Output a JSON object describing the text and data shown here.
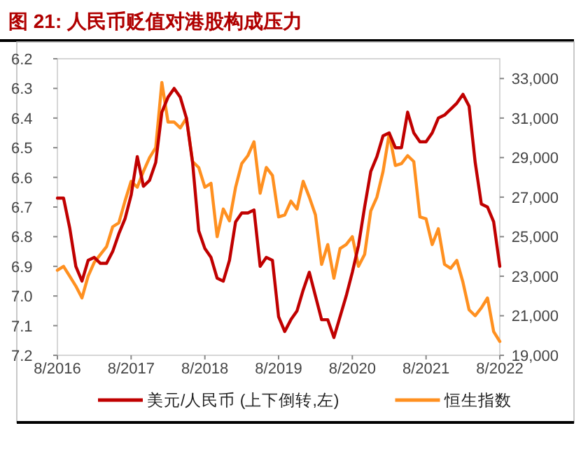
{
  "chart_data": {
    "type": "line",
    "title": "图 21: 人民币贬值对港股构成压力",
    "x": [
      "2016-08",
      "2016-09",
      "2016-10",
      "2016-11",
      "2016-12",
      "2017-01",
      "2017-02",
      "2017-03",
      "2017-04",
      "2017-05",
      "2017-06",
      "2017-07",
      "2017-08",
      "2017-09",
      "2017-10",
      "2017-11",
      "2017-12",
      "2018-01",
      "2018-02",
      "2018-03",
      "2018-04",
      "2018-05",
      "2018-06",
      "2018-07",
      "2018-08",
      "2018-09",
      "2018-10",
      "2018-11",
      "2018-12",
      "2019-01",
      "2019-02",
      "2019-03",
      "2019-04",
      "2019-05",
      "2019-06",
      "2019-07",
      "2019-08",
      "2019-09",
      "2019-10",
      "2019-11",
      "2019-12",
      "2020-01",
      "2020-02",
      "2020-03",
      "2020-04",
      "2020-05",
      "2020-06",
      "2020-07",
      "2020-08",
      "2020-09",
      "2020-10",
      "2020-11",
      "2020-12",
      "2021-01",
      "2021-02",
      "2021-03",
      "2021-04",
      "2021-05",
      "2021-06",
      "2021-07",
      "2021-08",
      "2021-09",
      "2021-10",
      "2021-11",
      "2021-12",
      "2022-01",
      "2022-02",
      "2022-03",
      "2022-04",
      "2022-05",
      "2022-06",
      "2022-07",
      "2022-08"
    ],
    "series": [
      {
        "name": "美元/人民币 (上下倒转,左)",
        "color": "#c00000",
        "values": [
          6.67,
          6.67,
          6.77,
          6.9,
          6.95,
          6.88,
          6.87,
          6.89,
          6.89,
          6.85,
          6.79,
          6.74,
          6.66,
          6.53,
          6.63,
          6.61,
          6.55,
          6.38,
          6.33,
          6.3,
          6.33,
          6.4,
          6.55,
          6.78,
          6.84,
          6.87,
          6.94,
          6.95,
          6.88,
          6.75,
          6.72,
          6.72,
          6.71,
          6.9,
          6.87,
          6.88,
          7.07,
          7.12,
          7.08,
          7.05,
          6.98,
          6.92,
          7.0,
          7.08,
          7.08,
          7.14,
          7.07,
          7.0,
          6.92,
          6.83,
          6.7,
          6.58,
          6.53,
          6.46,
          6.45,
          6.5,
          6.5,
          6.38,
          6.45,
          6.48,
          6.48,
          6.45,
          6.4,
          6.39,
          6.37,
          6.35,
          6.32,
          6.36,
          6.55,
          6.69,
          6.7,
          6.75,
          6.9
        ]
      },
      {
        "name": "恒生指数",
        "color": "#ff9020",
        "axis": "y2",
        "values": [
          23300,
          23500,
          23000,
          22500,
          21900,
          23000,
          23700,
          24100,
          24500,
          25500,
          25700,
          26800,
          27800,
          27500,
          28300,
          29000,
          29500,
          32800,
          30800,
          30800,
          30500,
          31000,
          28800,
          28500,
          27500,
          27700,
          25000,
          26400,
          25800,
          27500,
          28700,
          29100,
          29800,
          27200,
          28500,
          28100,
          26000,
          26100,
          26800,
          26400,
          27800,
          27000,
          26100,
          23600,
          24600,
          22900,
          24400,
          24600,
          25000,
          23500,
          24100,
          26300,
          27000,
          28300,
          30200,
          28600,
          28700,
          29100,
          28800,
          26000,
          25900,
          24600,
          25400,
          23600,
          23400,
          23800,
          22700,
          21300,
          21000,
          21400,
          21900,
          20200,
          19700
        ]
      }
    ],
    "xlim": [
      "2016-08",
      "2022-08"
    ],
    "xticks": [
      {
        "value": "2016-08",
        "label": "8/2016"
      },
      {
        "value": "2017-08",
        "label": "8/2017"
      },
      {
        "value": "2018-08",
        "label": "8/2018"
      },
      {
        "value": "2019-08",
        "label": "8/2019"
      },
      {
        "value": "2020-08",
        "label": "8/2020"
      },
      {
        "value": "2021-08",
        "label": "8/2021"
      },
      {
        "value": "2022-08",
        "label": "8/2022"
      }
    ],
    "ylim": [
      7.2,
      6.2
    ],
    "yticks": [
      6.2,
      6.3,
      6.4,
      6.5,
      6.6,
      6.7,
      6.8,
      6.9,
      {
        "value": 7,
        "label": "7.0"
      },
      7.1,
      7.2
    ],
    "y2lim": [
      19000,
      34000
    ],
    "y2ticks": [
      {
        "value": 19000,
        "label": "19,000"
      },
      {
        "value": 21000,
        "label": "21,000"
      },
      {
        "value": 23000,
        "label": "23,000"
      },
      {
        "value": 25000,
        "label": "25,000"
      },
      {
        "value": 27000,
        "label": "27,000"
      },
      {
        "value": 29000,
        "label": "29,000"
      },
      {
        "value": 31000,
        "label": "31,000"
      },
      {
        "value": 33000,
        "label": "33,000"
      }
    ],
    "legend": "bottom"
  }
}
